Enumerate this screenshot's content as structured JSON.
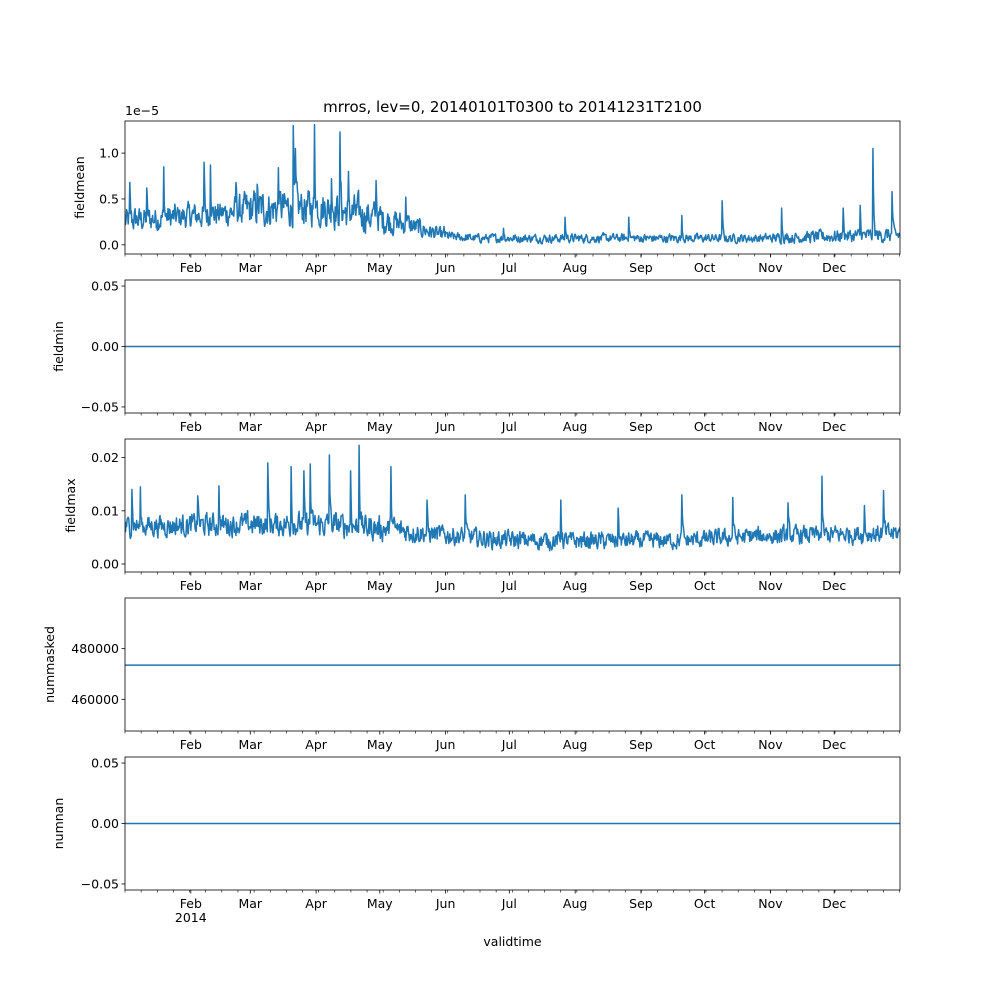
{
  "title": "mrros, lev=0, 20140101T0300 to 20141231T2100",
  "chart_data": {
    "type": "line",
    "title": "mrros, lev=0, 20140101T0300 to 20141231T2100",
    "xlabel": "validtime",
    "x_range": [
      "2014-01-01T03:00",
      "2014-12-31T21:00"
    ],
    "x_ticks": [
      "Feb",
      "Mar",
      "Apr",
      "May",
      "Jun",
      "Jul",
      "Aug",
      "Sep",
      "Oct",
      "Nov",
      "Dec"
    ],
    "x_tick_days": [
      31,
      59,
      90,
      120,
      151,
      181,
      212,
      243,
      273,
      304,
      334
    ],
    "x_year_label": "2014",
    "line_color": "#1f77b4",
    "panels": [
      {
        "name": "fieldmean",
        "ylabel": "fieldmean",
        "offset_label": "1e−5",
        "ylim": [
          -0.1,
          1.35
        ],
        "yticks": [
          0.0,
          0.5,
          1.0
        ],
        "ytick_labels": [
          "0.0",
          "0.5",
          "1.0"
        ],
        "kind": "noisy",
        "base_profile": [
          [
            0,
            0.2
          ],
          [
            30,
            0.25
          ],
          [
            60,
            0.3
          ],
          [
            90,
            0.32
          ],
          [
            110,
            0.25
          ],
          [
            135,
            0.15
          ],
          [
            150,
            0.07
          ],
          [
            165,
            0.05
          ],
          [
            300,
            0.05
          ],
          [
            365,
            0.07
          ]
        ],
        "amp_profile": [
          [
            0,
            0.35
          ],
          [
            45,
            0.35
          ],
          [
            60,
            0.5
          ],
          [
            110,
            0.5
          ],
          [
            140,
            0.25
          ],
          [
            155,
            0.12
          ],
          [
            300,
            0.12
          ],
          [
            330,
            0.18
          ],
          [
            365,
            0.2
          ]
        ],
        "min_value": 0.0,
        "spikes": [
          [
            2,
            0.68
          ],
          [
            10,
            0.62
          ],
          [
            18,
            0.85
          ],
          [
            37,
            0.9
          ],
          [
            40,
            0.87
          ],
          [
            52,
            0.68
          ],
          [
            62,
            0.66
          ],
          [
            72,
            0.84
          ],
          [
            79,
            1.3
          ],
          [
            80,
            1.05
          ],
          [
            89,
            1.31
          ],
          [
            97,
            0.72
          ],
          [
            101,
            1.23
          ],
          [
            105,
            0.8
          ],
          [
            118,
            0.7
          ],
          [
            132,
            0.52
          ],
          [
            150,
            0.2
          ],
          [
            178,
            0.18
          ],
          [
            207,
            0.3
          ],
          [
            237,
            0.3
          ],
          [
            262,
            0.32
          ],
          [
            281,
            0.48
          ],
          [
            309,
            0.4
          ],
          [
            338,
            0.4
          ],
          [
            346,
            0.43
          ],
          [
            352,
            1.05
          ],
          [
            361,
            0.58
          ]
        ]
      },
      {
        "name": "fieldmin",
        "ylabel": "fieldmin",
        "ylim": [
          -0.055,
          0.055
        ],
        "yticks": [
          -0.05,
          0.0,
          0.05
        ],
        "ytick_labels": [
          "−0.05",
          "0.00",
          "0.05"
        ],
        "kind": "constant",
        "constant": 0.0
      },
      {
        "name": "fieldmax",
        "ylabel": "fieldmax",
        "ylim": [
          -0.0015,
          0.0235
        ],
        "yticks": [
          0.0,
          0.01,
          0.02
        ],
        "ytick_labels": [
          "0.00",
          "0.01",
          "0.02"
        ],
        "kind": "noisy",
        "base_profile": [
          [
            0,
            0.0062
          ],
          [
            60,
            0.0065
          ],
          [
            100,
            0.0063
          ],
          [
            140,
            0.005
          ],
          [
            175,
            0.0038
          ],
          [
            200,
            0.0036
          ],
          [
            260,
            0.0037
          ],
          [
            300,
            0.0045
          ],
          [
            365,
            0.005
          ]
        ],
        "amp_profile": [
          [
            0,
            0.005
          ],
          [
            120,
            0.006
          ],
          [
            150,
            0.0045
          ],
          [
            250,
            0.004
          ],
          [
            365,
            0.0045
          ]
        ],
        "min_value": 0.0,
        "spikes": [
          [
            3,
            0.014
          ],
          [
            7,
            0.0145
          ],
          [
            34,
            0.0128
          ],
          [
            44,
            0.0147
          ],
          [
            67,
            0.019
          ],
          [
            78,
            0.0183
          ],
          [
            84,
            0.0175
          ],
          [
            87,
            0.0188
          ],
          [
            96,
            0.0205
          ],
          [
            106,
            0.0175
          ],
          [
            110,
            0.0223
          ],
          [
            125,
            0.0183
          ],
          [
            142,
            0.012
          ],
          [
            160,
            0.013
          ],
          [
            205,
            0.012
          ],
          [
            232,
            0.0105
          ],
          [
            262,
            0.013
          ],
          [
            286,
            0.0125
          ],
          [
            312,
            0.0115
          ],
          [
            328,
            0.0165
          ],
          [
            348,
            0.011
          ],
          [
            357,
            0.0138
          ]
        ]
      },
      {
        "name": "nummasked",
        "ylabel": "nummasked",
        "ylim": [
          447500,
          500000
        ],
        "yticks": [
          460000,
          480000
        ],
        "ytick_labels": [
          "460000",
          "480000"
        ],
        "kind": "constant",
        "constant": 473500
      },
      {
        "name": "numnan",
        "ylabel": "numnan",
        "ylim": [
          -0.055,
          0.055
        ],
        "yticks": [
          -0.05,
          0.0,
          0.05
        ],
        "ytick_labels": [
          "−0.05",
          "0.00",
          "0.05"
        ],
        "kind": "constant",
        "constant": 0.0
      }
    ]
  }
}
